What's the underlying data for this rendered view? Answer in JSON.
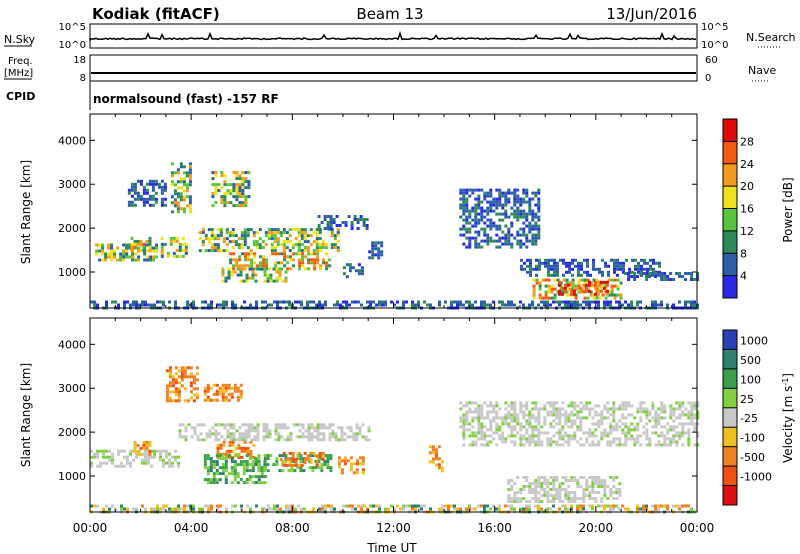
{
  "header": {
    "station": "Kodiak (fitACF)",
    "beam": "Beam 13",
    "date": "13/Jun/2016"
  },
  "status_panels": {
    "nsky_label": "N.Sky",
    "nsky_tick_top": "10^5",
    "nsky_tick_bottom": "10^0",
    "nsearch_label": "N.Search",
    "nsearch_tick_top": "10^5",
    "nsearch_tick_bottom": "10^0",
    "freq_label": "Freq.",
    "freq_unit": "[MHz]",
    "freq_tick_top": "18",
    "freq_tick_bottom": "8",
    "nave_label": "Nave",
    "nave_tick_top": "60",
    "nave_tick_bottom": "0",
    "cpid_label": "CPID",
    "cpid_text": "normalsound (fast) -157 RF"
  },
  "power_colorbar": {
    "label": "Power [dB]",
    "ticks": [
      "4",
      "8",
      "12",
      "16",
      "20",
      "24",
      "28"
    ],
    "colors": [
      "#2a2ae6",
      "#2c5fa8",
      "#2f8a5a",
      "#58c43c",
      "#f1e01c",
      "#f39b1a",
      "#f35a10",
      "#e00a0a"
    ]
  },
  "velocity_colorbar": {
    "label": "Velocity [m s^-1]",
    "ticks": [
      "1000",
      "500",
      "100",
      "25",
      "-25",
      "-100",
      "-500",
      "-1000"
    ],
    "colors": [
      "#2a3eb8",
      "#2f8070",
      "#3aa04a",
      "#80d040",
      "#c8c8c8",
      "#f0c020",
      "#f08020",
      "#f05010",
      "#e01010"
    ]
  },
  "axes": {
    "ylabel": "Slant Range [km]",
    "xlabel": "Time UT",
    "yticks": [
      "1000",
      "2000",
      "3000",
      "4000"
    ],
    "xticks": [
      "00:00",
      "04:00",
      "08:00",
      "12:00",
      "16:00",
      "20:00",
      "00:00"
    ]
  },
  "chart_data": [
    {
      "type": "heatmap",
      "panel": "power",
      "x_unit": "hours UT",
      "y_unit": "km",
      "xlim": [
        0,
        24
      ],
      "ylim": [
        180,
        4600
      ],
      "value_unit": "dB",
      "vmin": 0,
      "vmax": 32,
      "regions": [
        {
          "t0": 0.2,
          "t1": 2.6,
          "r0": 1300,
          "r1": 1650,
          "level": "mid"
        },
        {
          "t0": 1.6,
          "t1": 2.4,
          "r0": 1500,
          "r1": 1800,
          "level": "high"
        },
        {
          "t0": 2.8,
          "t1": 3.8,
          "r0": 1350,
          "r1": 1800,
          "level": "mid"
        },
        {
          "t0": 3.2,
          "t1": 4.0,
          "r0": 2400,
          "r1": 3500,
          "level": "mid"
        },
        {
          "t0": 1.5,
          "t1": 3.0,
          "r0": 2500,
          "r1": 3100,
          "level": "low"
        },
        {
          "t0": 4.8,
          "t1": 6.3,
          "r0": 2500,
          "r1": 3300,
          "level": "mid"
        },
        {
          "t0": 4.3,
          "t1": 9.8,
          "r0": 1500,
          "r1": 2000,
          "level": "mid"
        },
        {
          "t0": 5.5,
          "t1": 9.5,
          "r0": 1050,
          "r1": 1450,
          "level": "high"
        },
        {
          "t0": 5.2,
          "t1": 7.8,
          "r0": 800,
          "r1": 1100,
          "level": "mid"
        },
        {
          "t0": 9.0,
          "t1": 10.9,
          "r0": 2000,
          "r1": 2300,
          "level": "low"
        },
        {
          "t0": 10.0,
          "t1": 10.8,
          "r0": 900,
          "r1": 1200,
          "level": "low"
        },
        {
          "t0": 11.0,
          "t1": 11.5,
          "r0": 1350,
          "r1": 1700,
          "level": "low"
        },
        {
          "t0": 14.6,
          "t1": 17.7,
          "r0": 1600,
          "r1": 2900,
          "level": "low"
        },
        {
          "t0": 17.0,
          "t1": 22.5,
          "r0": 900,
          "r1": 1300,
          "level": "low"
        },
        {
          "t0": 17.5,
          "t1": 21.0,
          "r0": 420,
          "r1": 850,
          "level": "high"
        },
        {
          "t0": 18.5,
          "t1": 20.5,
          "r0": 500,
          "r1": 800,
          "level": "max"
        },
        {
          "t0": 21.0,
          "t1": 24.0,
          "r0": 800,
          "r1": 1000,
          "level": "low"
        },
        {
          "t0": 0.0,
          "t1": 24.0,
          "r0": 180,
          "r1": 350,
          "level": "low"
        }
      ]
    },
    {
      "type": "heatmap",
      "panel": "velocity",
      "x_unit": "hours UT",
      "y_unit": "km",
      "xlim": [
        0,
        24
      ],
      "ylim": [
        180,
        4600
      ],
      "value_unit": "m s^-1",
      "regions": [
        {
          "t0": 0.0,
          "t1": 3.5,
          "r0": 1250,
          "r1": 1600,
          "level": "ground"
        },
        {
          "t0": 1.6,
          "t1": 2.4,
          "r0": 1500,
          "r1": 1800,
          "level": "neg"
        },
        {
          "t0": 3.0,
          "t1": 4.2,
          "r0": 2700,
          "r1": 3500,
          "level": "neg"
        },
        {
          "t0": 4.5,
          "t1": 6.0,
          "r0": 2700,
          "r1": 3100,
          "level": "neg"
        },
        {
          "t0": 3.5,
          "t1": 11.0,
          "r0": 1800,
          "r1": 2200,
          "level": "ground"
        },
        {
          "t0": 5.0,
          "t1": 6.5,
          "r0": 1400,
          "r1": 1800,
          "level": "neg"
        },
        {
          "t0": 4.5,
          "t1": 7.0,
          "r0": 850,
          "r1": 1500,
          "level": "pos"
        },
        {
          "t0": 6.5,
          "t1": 9.5,
          "r0": 1100,
          "r1": 1500,
          "level": "pos"
        },
        {
          "t0": 7.5,
          "t1": 9.2,
          "r0": 1250,
          "r1": 1550,
          "level": "neg"
        },
        {
          "t0": 9.8,
          "t1": 10.8,
          "r0": 1050,
          "r1": 1450,
          "level": "neg"
        },
        {
          "t0": 13.4,
          "t1": 13.9,
          "r0": 1100,
          "r1": 1700,
          "level": "neg"
        },
        {
          "t0": 14.6,
          "t1": 24.0,
          "r0": 1700,
          "r1": 2700,
          "level": "ground"
        },
        {
          "t0": 16.5,
          "t1": 21.0,
          "r0": 400,
          "r1": 1000,
          "level": "ground"
        },
        {
          "t0": 0.0,
          "t1": 24.0,
          "r0": 180,
          "r1": 350,
          "level": "mixed"
        }
      ]
    }
  ]
}
